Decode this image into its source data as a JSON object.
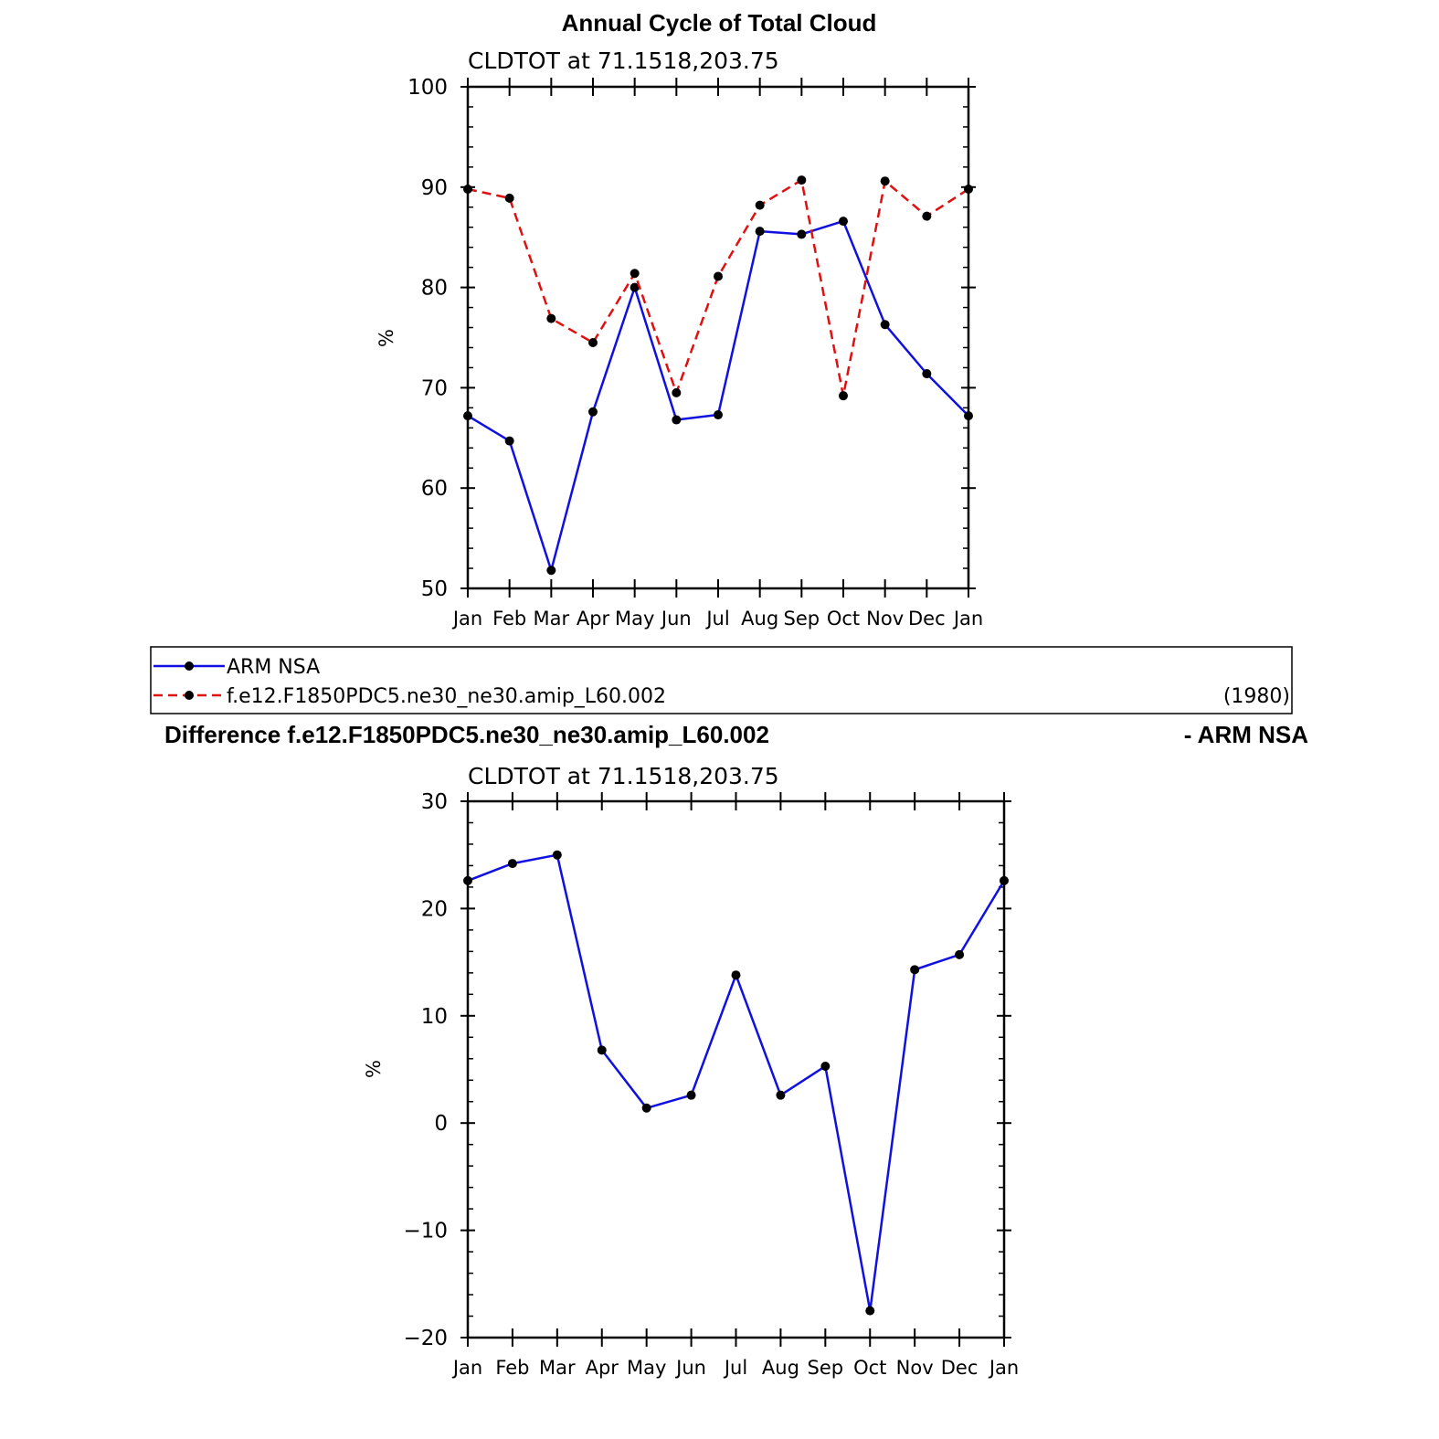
{
  "figure_title": "Annual Cycle of Total Cloud",
  "legend": {
    "year": "(1980)"
  },
  "difference_title": {
    "left": "Difference f.e12.F1850PDC5.ne30_ne30.amip_L60.002",
    "right": "- ARM NSA"
  },
  "colors": {
    "obs": "#1010e0",
    "model": "#e01010",
    "diff": "#1010e0",
    "axis": "#000000",
    "marker": "#000000"
  },
  "chart_data": [
    {
      "type": "line",
      "subtitle": "CLDTOT at 71.1518,203.75",
      "ylabel": "%",
      "xlabel": "",
      "categories": [
        "Jan",
        "Feb",
        "Mar",
        "Apr",
        "May",
        "Jun",
        "Jul",
        "Aug",
        "Sep",
        "Oct",
        "Nov",
        "Dec",
        "Jan"
      ],
      "ylim": [
        50,
        100
      ],
      "yticks": [
        "50",
        "60",
        "70",
        "80",
        "90",
        "100"
      ],
      "series": [
        {
          "name": "ARM NSA",
          "style": "solid",
          "values": [
            67.2,
            64.7,
            51.8,
            67.6,
            80.0,
            66.8,
            67.3,
            85.6,
            85.3,
            86.6,
            76.3,
            71.4,
            67.2
          ]
        },
        {
          "name": "f.e12.F1850PDC5.ne30_ne30.amip_L60.002",
          "style": "dashed",
          "values": [
            89.8,
            88.9,
            76.9,
            74.5,
            81.4,
            69.5,
            81.1,
            88.2,
            90.7,
            69.2,
            90.6,
            87.1,
            89.8
          ]
        }
      ],
      "grid": false
    },
    {
      "type": "line",
      "subtitle": "CLDTOT at 71.1518,203.75",
      "ylabel": "%",
      "xlabel": "",
      "categories": [
        "Jan",
        "Feb",
        "Mar",
        "Apr",
        "May",
        "Jun",
        "Jul",
        "Aug",
        "Sep",
        "Oct",
        "Nov",
        "Dec",
        "Jan"
      ],
      "ylim": [
        -20,
        30
      ],
      "yticks": [
        "−20",
        "−10",
        "0",
        "10",
        "20",
        "30"
      ],
      "series": [
        {
          "style": "solid",
          "values": [
            22.6,
            24.2,
            25.0,
            6.8,
            1.4,
            2.6,
            13.8,
            2.6,
            5.3,
            -17.5,
            14.3,
            15.7,
            22.6
          ]
        }
      ],
      "grid": false
    }
  ]
}
